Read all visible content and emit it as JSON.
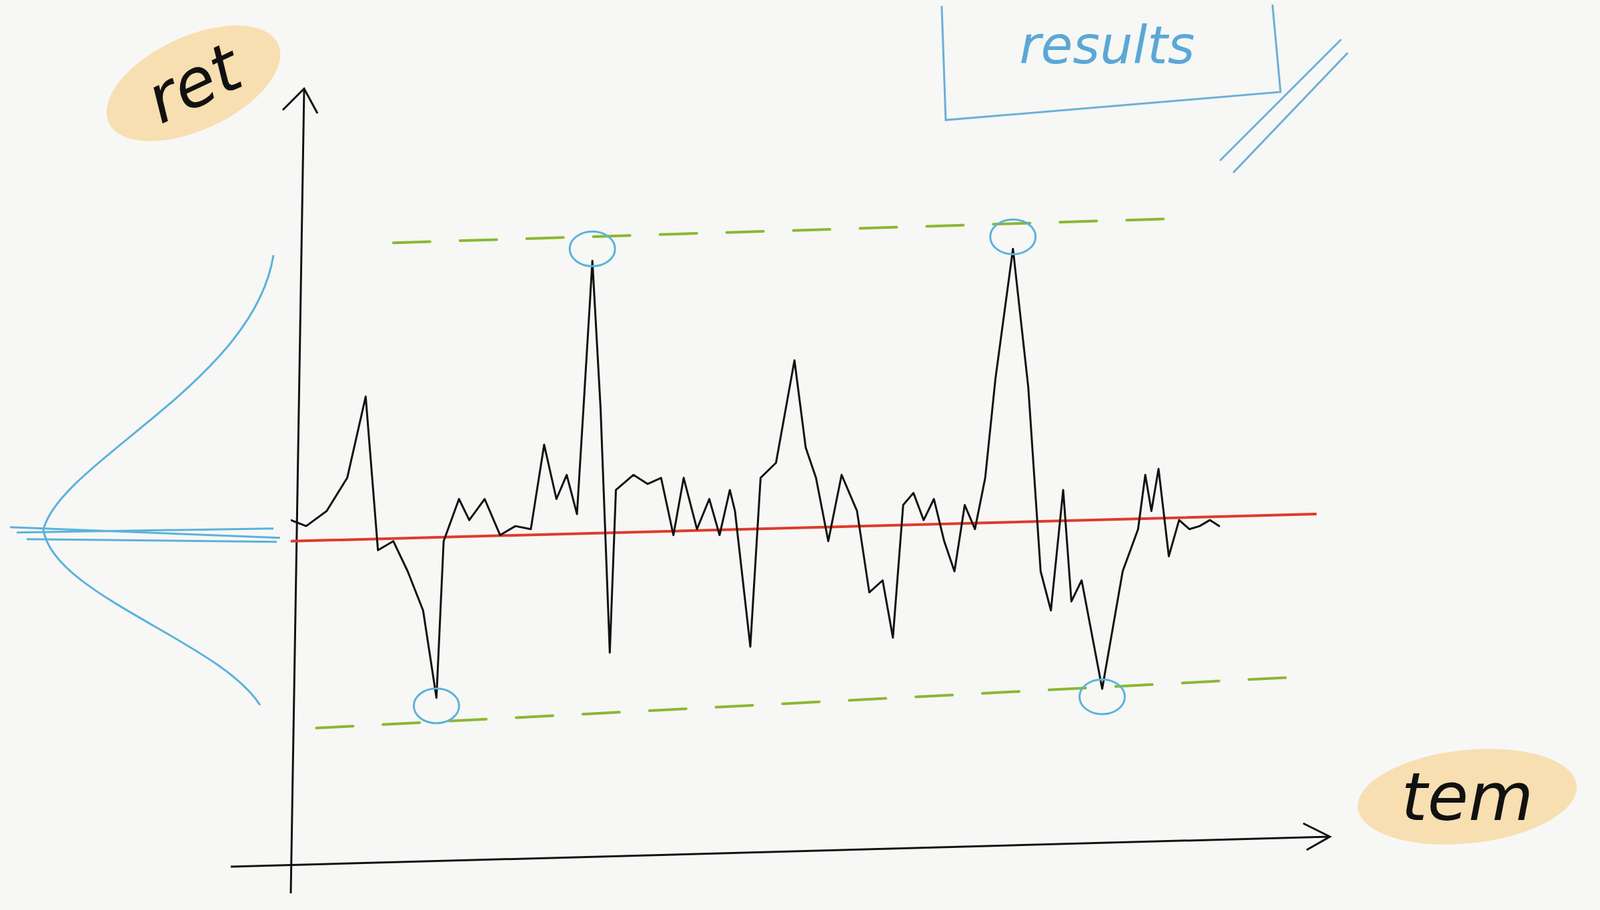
{
  "chart_data": {
    "type": "line",
    "y_label": "ret",
    "x_label": "tem",
    "annotation": "results",
    "xlim": [
      0,
      100
    ],
    "ylim": [
      -1.1,
      1.3
    ],
    "tick_labels": false,
    "grid": false,
    "series": [
      {
        "color": "#111111",
        "line_style": "solid",
        "x": [
          0,
          1.5,
          3.5,
          5.5,
          7.3,
          8.5,
          10,
          11.4,
          12.9,
          14.2,
          14.9,
          16.4,
          17.4,
          18.9,
          20.4,
          21.9,
          23.4,
          24.7,
          25.9,
          26.9,
          27.9,
          28.6,
          29.4,
          30.2,
          31.1,
          31.7,
          33.4,
          34.8,
          36.1,
          37.3,
          38.3,
          39.6,
          40.8,
          41.8,
          42.8,
          43.3,
          44.8,
          45.8,
          47.3,
          49.1,
          50.2,
          51.2,
          52.4,
          53.7,
          55.2,
          56.4,
          57.7,
          58.7,
          59.7,
          60.7,
          61.7,
          62.7,
          63.7,
          64.7,
          65.7,
          66.7,
          67.7,
          68.7,
          70.4,
          71.9,
          73.1,
          74.1,
          75.3,
          76.1,
          77.1,
          79.1,
          81.1,
          82.6,
          83.3,
          83.9,
          84.6,
          85.6,
          86.6,
          87.6,
          88.6,
          89.6,
          90.5
        ],
        "values": [
          0.05,
          0.03,
          0.08,
          0.19,
          0.46,
          -0.05,
          -0.02,
          -0.12,
          -0.25,
          -0.54,
          -0.02,
          0.12,
          0.05,
          0.12,
          0,
          0.03,
          0.02,
          0.3,
          0.12,
          0.2,
          0.07,
          0.46,
          0.91,
          0.42,
          -0.39,
          0.15,
          0.2,
          0.17,
          0.19,
          0,
          0.19,
          0.02,
          0.12,
          0,
          0.15,
          0.08,
          -0.37,
          0.19,
          0.24,
          0.58,
          0.29,
          0.19,
          -0.02,
          0.2,
          0.08,
          -0.19,
          -0.15,
          -0.34,
          0.1,
          0.14,
          0.05,
          0.12,
          -0.02,
          -0.12,
          0.1,
          0.02,
          0.19,
          0.52,
          0.95,
          0.49,
          -0.12,
          -0.25,
          0.15,
          -0.22,
          -0.15,
          -0.51,
          -0.12,
          0.02,
          0.2,
          0.08,
          0.22,
          -0.07,
          0.05,
          0.02,
          0.03,
          0.05,
          0.03
        ]
      },
      {
        "color": "#e03a2a",
        "line_style": "solid",
        "x": [
          0,
          100
        ],
        "values": [
          -0.02,
          0.07
        ]
      },
      {
        "color": "#8ab832",
        "line_style": "dashed",
        "x": [
          10,
          86
        ],
        "values": [
          0.97,
          1.05
        ]
      },
      {
        "color": "#8ab832",
        "line_style": "dashed",
        "x": [
          2.5,
          98.5
        ],
        "values": [
          -0.64,
          -0.47
        ]
      }
    ]
  }
}
